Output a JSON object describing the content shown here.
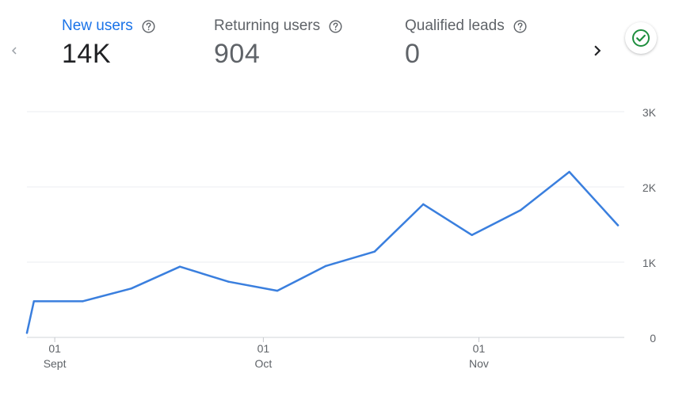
{
  "metrics": [
    {
      "label": "New users",
      "value": "14K",
      "active": true
    },
    {
      "label": "Returning users",
      "value": "904",
      "active": false
    },
    {
      "label": "Qualified leads",
      "value": "0",
      "active": false
    }
  ],
  "icons": {
    "help": "help-circle-icon",
    "prev": "chevron-left-icon",
    "next": "chevron-right-icon",
    "status": "check-circle-icon"
  },
  "colors": {
    "accent": "#1a73e8",
    "line": "#3a7fde",
    "status_green": "#1e8e3e"
  },
  "chart_data": {
    "type": "line",
    "title": "",
    "xlabel": "",
    "ylabel": "",
    "ylim": [
      0,
      3000
    ],
    "yticks": [
      {
        "value": 0,
        "label": "0"
      },
      {
        "value": 1000,
        "label": "1K"
      },
      {
        "value": 2000,
        "label": "2K"
      },
      {
        "value": 3000,
        "label": "3K"
      }
    ],
    "xticks": [
      {
        "date": "2023-09-01",
        "day": "01",
        "month": "Sept"
      },
      {
        "date": "2023-10-01",
        "day": "01",
        "month": "Oct"
      },
      {
        "date": "2023-11-01",
        "day": "01",
        "month": "Nov"
      }
    ],
    "grid": true,
    "series": [
      {
        "name": "",
        "points": [
          {
            "x": "2023-08-28",
            "y": 60
          },
          {
            "x": "2023-08-29",
            "y": 480
          },
          {
            "x": "2023-09-05",
            "y": 480
          },
          {
            "x": "2023-09-12",
            "y": 650
          },
          {
            "x": "2023-09-19",
            "y": 940
          },
          {
            "x": "2023-09-26",
            "y": 740
          },
          {
            "x": "2023-10-03",
            "y": 620
          },
          {
            "x": "2023-10-10",
            "y": 950
          },
          {
            "x": "2023-10-17",
            "y": 1140
          },
          {
            "x": "2023-10-24",
            "y": 1770
          },
          {
            "x": "2023-10-31",
            "y": 1360
          },
          {
            "x": "2023-11-07",
            "y": 1690
          },
          {
            "x": "2023-11-14",
            "y": 2200
          },
          {
            "x": "2023-11-21",
            "y": 1490
          }
        ]
      }
    ]
  }
}
